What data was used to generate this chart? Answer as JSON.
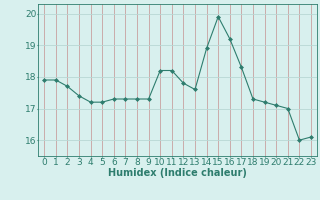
{
  "x": [
    0,
    1,
    2,
    3,
    4,
    5,
    6,
    7,
    8,
    9,
    10,
    11,
    12,
    13,
    14,
    15,
    16,
    17,
    18,
    19,
    20,
    21,
    22,
    23
  ],
  "y": [
    17.9,
    17.9,
    17.7,
    17.4,
    17.2,
    17.2,
    17.3,
    17.3,
    17.3,
    17.3,
    18.2,
    18.2,
    17.8,
    17.6,
    18.9,
    19.9,
    19.2,
    18.3,
    17.3,
    17.2,
    17.1,
    17.0,
    16.0,
    16.1
  ],
  "line_color": "#2e7d6e",
  "marker": "D",
  "marker_size": 2,
  "bg_color": "#d8f0ee",
  "grid_color": "#b8d8d4",
  "grid_color_v": "#c8a0a0",
  "xlabel": "Humidex (Indice chaleur)",
  "ylim": [
    15.5,
    20.3
  ],
  "xlim": [
    -0.5,
    23.5
  ],
  "yticks": [
    16,
    17,
    18,
    19,
    20
  ],
  "xticks": [
    0,
    1,
    2,
    3,
    4,
    5,
    6,
    7,
    8,
    9,
    10,
    11,
    12,
    13,
    14,
    15,
    16,
    17,
    18,
    19,
    20,
    21,
    22,
    23
  ],
  "tick_color": "#2e7d6e",
  "label_color": "#2e7d6e",
  "font_size_xlabel": 7,
  "font_size_ticks": 6.5
}
